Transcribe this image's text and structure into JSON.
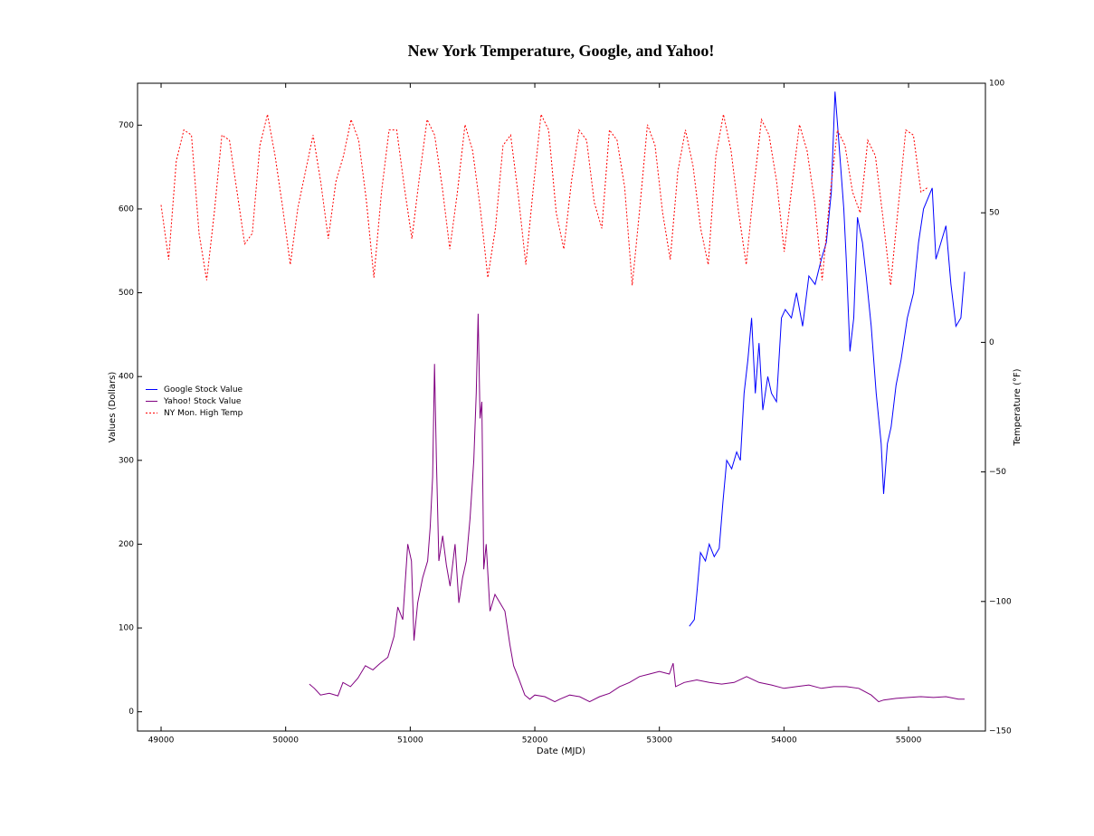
{
  "chart_data": {
    "type": "line",
    "title": "New York Temperature, Google, and Yahoo!",
    "xlabel": "Date (MJD)",
    "ylabel": "Values (Dollars)",
    "y2label": "Temperature (°F)",
    "xlim": [
      48811,
      55617
    ],
    "xticks": [
      49000,
      50000,
      51000,
      52000,
      53000,
      54000,
      55000
    ],
    "ylim": [
      -23,
      750
    ],
    "yticks": [
      0,
      100,
      200,
      300,
      400,
      500,
      600,
      700
    ],
    "y2lim": [
      -150,
      100
    ],
    "y2ticks": [
      {
        "value": -150,
        "label": "−150"
      },
      {
        "value": -100,
        "label": "−100"
      },
      {
        "value": -50,
        "label": "−50"
      },
      0,
      50,
      100
    ],
    "legend": "center left",
    "series": [
      {
        "name": "Google Stock Value",
        "color": "#0000ff",
        "linestyle": "solid",
        "x": [
          53240,
          53280,
          53300,
          53330,
          53370,
          53400,
          53440,
          53480,
          53510,
          53540,
          53580,
          53620,
          53650,
          53680,
          53710,
          53740,
          53770,
          53800,
          53830,
          53870,
          53900,
          53940,
          53980,
          54010,
          54060,
          54100,
          54150,
          54200,
          54250,
          54300,
          54340,
          54380,
          54410,
          54440,
          54480,
          54500,
          54530,
          54560,
          54590,
          54630,
          54660,
          54700,
          54740,
          54780,
          54800,
          54830,
          54860,
          54900,
          54940,
          54990,
          55040,
          55080,
          55120,
          55190,
          55220,
          55260,
          55300,
          55340,
          55380,
          55420,
          55450
        ],
        "values": [
          102,
          110,
          140,
          190,
          180,
          200,
          185,
          195,
          250,
          300,
          290,
          310,
          300,
          380,
          420,
          470,
          380,
          440,
          360,
          400,
          380,
          370,
          470,
          480,
          470,
          500,
          460,
          520,
          510,
          540,
          560,
          620,
          740,
          680,
          600,
          540,
          430,
          470,
          590,
          560,
          520,
          460,
          380,
          320,
          260,
          320,
          340,
          390,
          420,
          470,
          500,
          560,
          600,
          625,
          540,
          560,
          580,
          510,
          460,
          470,
          525
        ]
      },
      {
        "name": "Yahoo! Stock Value",
        "color": "#800080",
        "linestyle": "solid",
        "x": [
          50190,
          50230,
          50280,
          50350,
          50420,
          50460,
          50520,
          50580,
          50640,
          50700,
          50760,
          50820,
          50870,
          50900,
          50940,
          50980,
          51010,
          51030,
          51060,
          51100,
          51140,
          51160,
          51180,
          51195,
          51210,
          51230,
          51260,
          51290,
          51320,
          51360,
          51390,
          51420,
          51450,
          51480,
          51510,
          51530,
          51545,
          51560,
          51575,
          51590,
          51610,
          51640,
          51680,
          51720,
          51760,
          51800,
          51830,
          51870,
          51920,
          51960,
          52000,
          52080,
          52160,
          52200,
          52280,
          52360,
          52440,
          52520,
          52600,
          52680,
          52760,
          52840,
          52920,
          53000,
          53080,
          53110,
          53130,
          53200,
          53300,
          53400,
          53500,
          53600,
          53700,
          53800,
          53900,
          54000,
          54100,
          54200,
          54300,
          54400,
          54500,
          54600,
          54700,
          54760,
          54800,
          54900,
          55000,
          55100,
          55200,
          55300,
          55400,
          55450
        ],
        "values": [
          33,
          28,
          20,
          22,
          19,
          35,
          30,
          40,
          55,
          50,
          58,
          65,
          90,
          125,
          110,
          200,
          180,
          85,
          130,
          160,
          180,
          220,
          280,
          415,
          300,
          180,
          210,
          175,
          150,
          200,
          130,
          160,
          180,
          230,
          300,
          380,
          475,
          350,
          370,
          170,
          200,
          120,
          140,
          130,
          120,
          80,
          55,
          40,
          20,
          15,
          20,
          18,
          12,
          15,
          20,
          18,
          12,
          18,
          22,
          30,
          35,
          42,
          45,
          48,
          45,
          58,
          30,
          35,
          38,
          35,
          33,
          35,
          42,
          35,
          32,
          28,
          30,
          32,
          28,
          30,
          30,
          28,
          20,
          12,
          14,
          16,
          17,
          18,
          17,
          18,
          15,
          15
        ]
      },
      {
        "name": "NY Mon. High Temp",
        "color": "#ff0000",
        "linestyle": "dashed",
        "axis": "y2",
        "x": [
          49000,
          49061,
          49122,
          49183,
          49244,
          49305,
          49366,
          49427,
          49488,
          49549,
          49610,
          49671,
          49732,
          49793,
          49854,
          49915,
          49976,
          50037,
          50098,
          50159,
          50220,
          50281,
          50342,
          50403,
          50464,
          50525,
          50586,
          50647,
          50708,
          50769,
          50830,
          50891,
          50952,
          51013,
          51074,
          51135,
          51196,
          51257,
          51318,
          51379,
          51440,
          51501,
          51562,
          51623,
          51684,
          51745,
          51806,
          51867,
          51928,
          51989,
          52050,
          52111,
          52172,
          52233,
          52294,
          52355,
          52416,
          52477,
          52538,
          52599,
          52660,
          52721,
          52782,
          52843,
          52904,
          52965,
          53026,
          53087,
          53148,
          53209,
          53270,
          53331,
          53392,
          53453,
          53514,
          53575,
          53636,
          53697,
          53758,
          53819,
          53880,
          53941,
          54002,
          54063,
          54124,
          54185,
          54246,
          54307,
          54368,
          54429,
          54490,
          54551,
          54612,
          54673,
          54734,
          54795,
          54856,
          54917,
          54978,
          55039,
          55100,
          55161
        ],
        "values": [
          53,
          32,
          70,
          82,
          80,
          42,
          24,
          50,
          80,
          78,
          58,
          38,
          42,
          76,
          88,
          72,
          52,
          30,
          52,
          66,
          80,
          62,
          40,
          62,
          72,
          86,
          78,
          55,
          25,
          58,
          82,
          82,
          60,
          40,
          64,
          86,
          80,
          60,
          36,
          58,
          84,
          74,
          52,
          25,
          44,
          76,
          80,
          57,
          30,
          60,
          88,
          82,
          50,
          36,
          62,
          82,
          78,
          54,
          44,
          82,
          78,
          60,
          22,
          52,
          84,
          76,
          50,
          32,
          66,
          82,
          68,
          44,
          30,
          72,
          88,
          74,
          50,
          30,
          60,
          86,
          80,
          62,
          35,
          60,
          84,
          74,
          54,
          24,
          56,
          82,
          76,
          58,
          50,
          78,
          72,
          48,
          22,
          52,
          82,
          80,
          58,
          60
        ]
      }
    ]
  }
}
